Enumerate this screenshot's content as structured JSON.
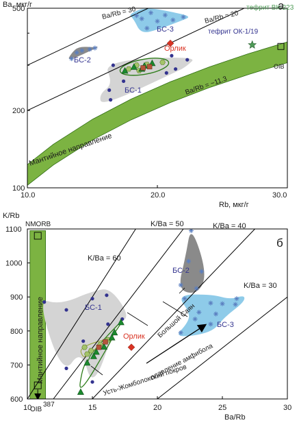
{
  "colors": {
    "axis": "#000000",
    "mantle_band": "#7cb342",
    "mantle_band_stroke": "#2e6b13",
    "group_gray": "#d4d4d4",
    "group_dark": "#8a8a8a",
    "group_blue": "#8ecbe9",
    "circle_pt": "#33338f",
    "cross_pt": "#5b7fc0",
    "triangle_pt": "#1b8a2e",
    "hexagon_pt": "#a4c46a",
    "square_pt": "#b5553a",
    "orlik": "#d93323",
    "tephrite_vk": "#4e9b57",
    "tephrite_ok": "#33338f",
    "green_outline": "#2e7d1a",
    "text": "#1a1a1a"
  },
  "chart_data": [
    {
      "type": "scatter",
      "panel_label": "а",
      "ylabel": "Ba, мкг/г",
      "xlabel": "Rb, мкг/г",
      "xlim": [
        10,
        30
      ],
      "ylim": [
        100,
        500
      ],
      "yscale": "log",
      "xticks": [
        "10.0",
        "20.0",
        "30.0"
      ],
      "yticks": [
        "100",
        "200",
        "500"
      ],
      "reference_lines": [
        {
          "label": "Ba/Rb = 30",
          "ratio": 30
        },
        {
          "label": "Ba/Rb = 20",
          "ratio": 20
        },
        {
          "label": "Ba/Rb = ~11.3",
          "ratio": 11.3
        }
      ],
      "band_label": "Мантийное направление",
      "groups": [
        {
          "name": "БС-1",
          "label": "БС-1",
          "points": [
            [
              16.4,
              220
            ],
            [
              17.4,
              260
            ],
            [
              20.7,
              280
            ],
            [
              22.3,
              315
            ],
            [
              21.4,
              290
            ],
            [
              16.6,
              300
            ],
            [
              16.3,
              240
            ]
          ]
        },
        {
          "name": "БС-2",
          "label": "БС-2",
          "points": [
            [
              13.4,
              318
            ],
            [
              13.8,
              336
            ],
            [
              14.2,
              342
            ],
            [
              14.8,
              346
            ],
            [
              15.2,
              350
            ]
          ]
        },
        {
          "name": "БС-3",
          "label": "БС-3",
          "points": [
            [
              18.4,
              468
            ],
            [
              18.8,
              455
            ],
            [
              19.5,
              480
            ],
            [
              20.0,
              445
            ],
            [
              20.6,
              470
            ],
            [
              21.2,
              450
            ],
            [
              22.0,
              462
            ],
            [
              19.2,
              418
            ]
          ]
        }
      ],
      "triangle_points": [
        [
          17.5,
          285
        ],
        [
          18.2,
          295
        ],
        [
          19.0,
          298
        ],
        [
          19.6,
          305
        ],
        [
          18.8,
          290
        ]
      ],
      "hexagon_points": [
        [
          17.8,
          290
        ],
        [
          18.4,
          300
        ],
        [
          18.6,
          286
        ],
        [
          19.2,
          302
        ],
        [
          20.4,
          308
        ]
      ],
      "square_points": [
        [
          18.9,
          293
        ],
        [
          19.4,
          296
        ]
      ],
      "orlik_points": [
        [
          21.0,
          365
        ]
      ],
      "annotations": [
        {
          "text": "Орлик",
          "x": 19.9,
          "y": 355
        },
        {
          "text": "тефрит ОК-1/19",
          "x": 21.6,
          "y": 390
        },
        {
          "text": "тефрит ВК-223",
          "x": 28.0,
          "y": 410
        },
        {
          "text": "OIB",
          "x": 28.8,
          "y": 332
        }
      ],
      "ok_point": [
        21.1,
        365
      ],
      "vk_point": [
        27.3,
        360
      ],
      "oib_point": [
        29.5,
        355
      ]
    },
    {
      "type": "scatter",
      "panel_label": "б",
      "ylabel": "K/Rb",
      "xlabel": "Ba/Rb",
      "xlim": [
        10,
        30
      ],
      "ylim": [
        600,
        1100
      ],
      "xticks": [
        "10",
        "15",
        "20",
        "25",
        "30"
      ],
      "yticks": [
        "600",
        "700",
        "800",
        "900",
        "1000",
        "1100"
      ],
      "reference_lines": [
        {
          "label": "K/Ba = 60",
          "ratio": 60
        },
        {
          "label": "K/Ba = 50",
          "ratio": 50
        },
        {
          "label": "K/Ba = 40",
          "ratio": 40
        },
        {
          "label": "K/Ba = 30",
          "ratio": 30
        }
      ],
      "band_label": "Мантийное направление",
      "band_points": [
        {
          "label": "NMORB",
          "x": 10.8,
          "y": 1080
        },
        {
          "label": "OIB",
          "x": 10.8,
          "y": 640
        }
      ],
      "oib_value": "387",
      "groups": [
        {
          "name": "БС-1",
          "label": "БС-1",
          "points": [
            [
              11.3,
              885
            ],
            [
              13.0,
              862
            ],
            [
              15.0,
              895
            ],
            [
              16.1,
              905
            ],
            [
              17.3,
              835
            ],
            [
              14.3,
              770
            ],
            [
              16.2,
              820
            ],
            [
              13.0,
              690
            ],
            [
              15.0,
              650
            ]
          ]
        },
        {
          "name": "БС-2",
          "label": "БС-2",
          "points": [
            [
              22.6,
              1095
            ],
            [
              22.4,
              1005
            ],
            [
              21.8,
              935
            ],
            [
              23.4,
              975
            ],
            [
              23.0,
              925
            ]
          ]
        },
        {
          "name": "БС-3",
          "label": "БС-3",
          "points": [
            [
              22.1,
              895
            ],
            [
              24.1,
              882
            ],
            [
              25.0,
              880
            ],
            [
              26.0,
              878
            ],
            [
              23.2,
              855
            ],
            [
              24.5,
              850
            ],
            [
              22.9,
              835
            ],
            [
              24.1,
              820
            ],
            [
              21.8,
              795
            ],
            [
              26.1,
              895
            ]
          ]
        }
      ],
      "triangle_points": [
        [
          14.1,
          620
        ],
        [
          14.6,
          706
        ],
        [
          15.3,
          738
        ],
        [
          15.9,
          753
        ],
        [
          16.5,
          780
        ],
        [
          17.2,
          825
        ],
        [
          16.7,
          795
        ],
        [
          15.1,
          725
        ]
      ],
      "hexagon_points": [
        [
          14.4,
          752
        ],
        [
          14.9,
          742
        ],
        [
          15.6,
          760
        ],
        [
          16.2,
          774
        ],
        [
          14.6,
          732
        ]
      ],
      "square_points": [
        [
          15.5,
          752
        ],
        [
          16.0,
          768
        ]
      ],
      "orlik_points": [
        [
          18.0,
          752
        ]
      ],
      "annotations": [
        {
          "text": "Орлик",
          "x": 18.2,
          "y": 788
        },
        {
          "text": "Большой Саян",
          "x": 19.9,
          "y": 880
        },
        {
          "text": "Усть-Жомболокский покров",
          "x": 17.5,
          "y": 632
        },
        {
          "text": "плавление амфибола",
          "x": 19.4,
          "y": 695
        }
      ]
    }
  ]
}
